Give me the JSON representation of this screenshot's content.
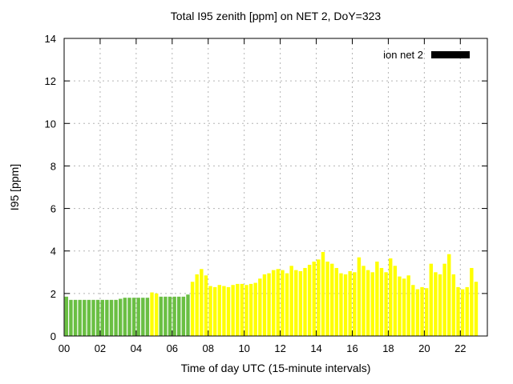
{
  "chart_data": {
    "type": "bar",
    "title": "Total I95 zenith [ppm] on NET 2, DoY=323",
    "xlabel": "Time of day UTC (15-minute intervals)",
    "ylabel": "I95 [ppm]",
    "legend": {
      "label": "ion net 2",
      "swatch_color": "#000000"
    },
    "grid": true,
    "x_axis": {
      "max_hours": 23.5,
      "ticks": [
        {
          "hour": 0,
          "label": "00"
        },
        {
          "hour": 2,
          "label": "02"
        },
        {
          "hour": 4,
          "label": "04"
        },
        {
          "hour": 6,
          "label": "06"
        },
        {
          "hour": 8,
          "label": "08"
        },
        {
          "hour": 10,
          "label": "10"
        },
        {
          "hour": 12,
          "label": "12"
        },
        {
          "hour": 14,
          "label": "14"
        },
        {
          "hour": 16,
          "label": "16"
        },
        {
          "hour": 18,
          "label": "18"
        },
        {
          "hour": 20,
          "label": "20"
        },
        {
          "hour": 22,
          "label": "22"
        }
      ]
    },
    "y_axis": {
      "max": 14,
      "ticks": [
        0,
        2,
        4,
        6,
        8,
        10,
        12,
        14
      ]
    },
    "series": {
      "name": "ion net 2",
      "x_start_hour": 0,
      "x_step_hours": 0.25,
      "values": [
        1.85,
        1.7,
        1.7,
        1.7,
        1.7,
        1.7,
        1.7,
        1.7,
        1.7,
        1.7,
        1.7,
        1.7,
        1.75,
        1.8,
        1.8,
        1.8,
        1.8,
        1.8,
        1.8,
        2.05,
        2.0,
        1.85,
        1.85,
        1.85,
        1.85,
        1.85,
        1.85,
        1.95,
        2.55,
        2.9,
        3.15,
        2.85,
        2.35,
        2.3,
        2.4,
        2.35,
        2.3,
        2.4,
        2.45,
        2.45,
        2.4,
        2.45,
        2.5,
        2.7,
        2.9,
        2.95,
        3.1,
        3.15,
        3.1,
        2.95,
        3.3,
        3.1,
        3.05,
        3.2,
        3.35,
        3.5,
        3.6,
        3.95,
        3.5,
        3.4,
        3.2,
        2.95,
        2.9,
        3.05,
        3.0,
        3.7,
        3.3,
        3.1,
        3.0,
        3.5,
        3.2,
        3.0,
        3.65,
        3.3,
        2.8,
        2.7,
        2.85,
        2.4,
        2.2,
        2.3,
        2.25,
        3.4,
        3.0,
        2.9,
        3.4,
        3.85,
        2.9,
        2.3,
        2.2,
        2.3,
        3.2,
        2.55
      ],
      "bar_colors": "gggggggggggggggggggyygggggggyyyyyyyyyyyyyyyyyyyyyyyyyyyyyyyyyyyyyyyyyyyyyyyyyyyyyyyyyyyyyyyy",
      "color_key": {
        "g": "#6abf43",
        "y": "#ffff00"
      }
    }
  }
}
